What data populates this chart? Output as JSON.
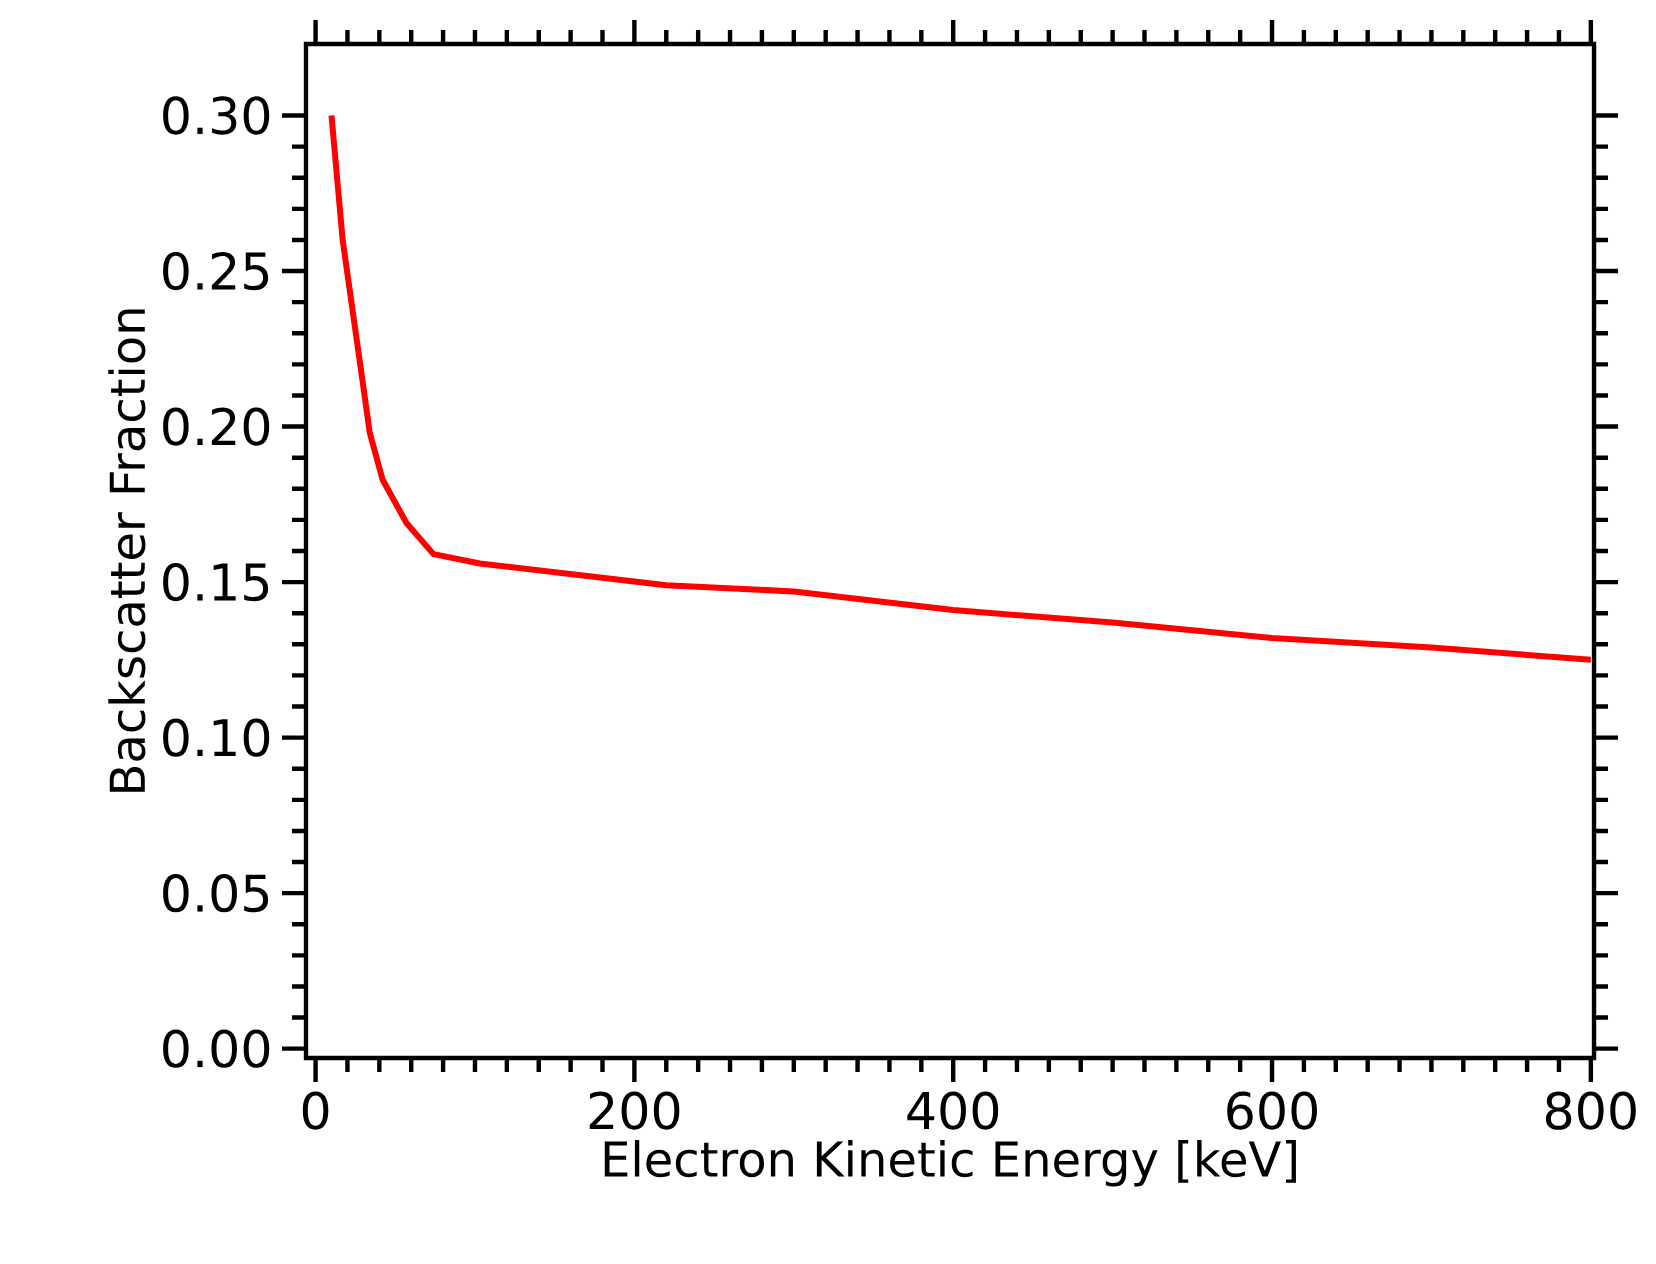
{
  "chart_data": {
    "type": "line",
    "xlabel": "Electron Kinetic Energy [keV]",
    "ylabel": "Backscatter Fraction",
    "x": [
      10,
      17,
      28,
      34,
      42,
      57,
      74,
      103,
      153,
      220,
      300,
      400,
      500,
      600,
      700,
      800
    ],
    "series": [
      {
        "color": "#ff0000",
        "values": [
          0.3,
          0.26,
          0.22,
          0.198,
          0.183,
          0.169,
          0.159,
          0.156,
          0.153,
          0.149,
          0.147,
          0.141,
          0.137,
          0.132,
          0.129,
          0.125
        ]
      }
    ],
    "xlim": [
      -6,
      802
    ],
    "ylim": [
      -0.003,
      0.323
    ],
    "xticks": [
      0,
      200,
      400,
      600,
      800
    ],
    "yticks": [
      {
        "value": 0,
        "label": "0.00"
      },
      {
        "value": 0.05,
        "label": "0.05"
      },
      {
        "value": 0.1,
        "label": "0.10"
      },
      {
        "value": 0.15,
        "label": "0.15"
      },
      {
        "value": 0.2,
        "label": "0.20"
      },
      {
        "value": 0.25,
        "label": "0.25"
      },
      {
        "value": 0.3,
        "label": "0.30"
      }
    ],
    "marker": "none",
    "line_style": "solid"
  }
}
